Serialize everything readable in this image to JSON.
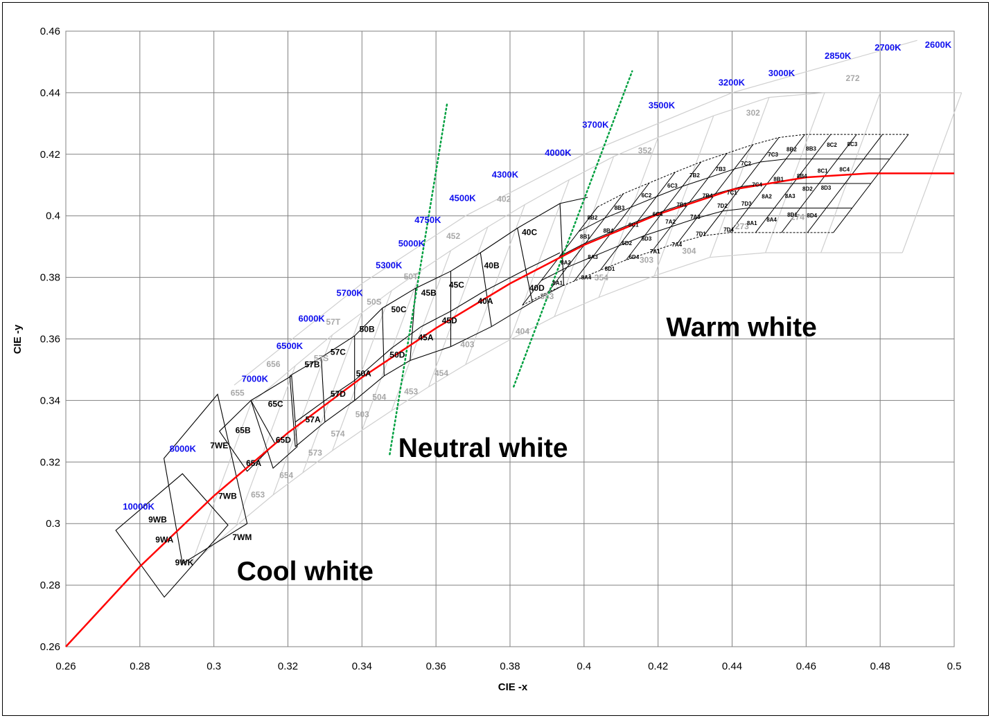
{
  "colors": {
    "locus": "#ff0000",
    "divider": "#00a040",
    "cct_label": "#1010ee",
    "bin_label_gray": "#a8a8a8"
  },
  "chart_data": {
    "type": "line",
    "title": "",
    "xlabel": "CIE -x",
    "ylabel": "CIE -y",
    "xlim": [
      0.26,
      0.5
    ],
    "ylim": [
      0.26,
      0.46
    ],
    "x_ticks": [
      "0.26",
      "0.28",
      "0.3",
      "0.32",
      "0.34",
      "0.36",
      "0.38",
      "0.4",
      "0.42",
      "0.44",
      "0.46",
      "0.48",
      "0.5"
    ],
    "y_ticks": [
      "0.26",
      "0.28",
      "0.3",
      "0.32",
      "0.34",
      "0.36",
      "0.38",
      "0.4",
      "0.42",
      "0.44",
      "0.46"
    ],
    "grid": true,
    "series": [
      {
        "name": "",
        "x": [
          0.26,
          0.28,
          0.3,
          0.32,
          0.34,
          0.36,
          0.38,
          0.4,
          0.42,
          0.44,
          0.46,
          0.477,
          0.5
        ],
        "y": [
          0.26,
          0.286,
          0.309,
          0.3295,
          0.3475,
          0.3635,
          0.378,
          0.3905,
          0.4005,
          0.4085,
          0.4125,
          0.4138,
          0.4138
        ]
      }
    ],
    "cct_labels": [
      {
        "text": "10000K",
        "x": 0.2754,
        "y": 0.3046
      },
      {
        "text": "8000K",
        "x": 0.288,
        "y": 0.3233
      },
      {
        "text": "7000K",
        "x": 0.3075,
        "y": 0.346
      },
      {
        "text": "6500K",
        "x": 0.3169,
        "y": 0.3567
      },
      {
        "text": "6000K",
        "x": 0.3228,
        "y": 0.3656
      },
      {
        "text": "5700K",
        "x": 0.3331,
        "y": 0.374
      },
      {
        "text": "5300K",
        "x": 0.3437,
        "y": 0.383
      },
      {
        "text": "5000K",
        "x": 0.3498,
        "y": 0.39
      },
      {
        "text": "4750K",
        "x": 0.3542,
        "y": 0.3977
      },
      {
        "text": "4500K",
        "x": 0.3636,
        "y": 0.4048
      },
      {
        "text": "4300K",
        "x": 0.3751,
        "y": 0.4124
      },
      {
        "text": "4000K",
        "x": 0.3894,
        "y": 0.4195
      },
      {
        "text": "3700K",
        "x": 0.3995,
        "y": 0.4286
      },
      {
        "text": "3500K",
        "x": 0.4174,
        "y": 0.4349
      },
      {
        "text": "3200K",
        "x": 0.4363,
        "y": 0.4423
      },
      {
        "text": "3000K",
        "x": 0.4498,
        "y": 0.4454
      },
      {
        "text": "2850K",
        "x": 0.465,
        "y": 0.451
      },
      {
        "text": "2700K",
        "x": 0.4785,
        "y": 0.4537
      },
      {
        "text": "2600K",
        "x": 0.4921,
        "y": 0.4546
      }
    ],
    "bins_black": [
      {
        "text": "9WB",
        "x": 0.2823,
        "y": 0.3004
      },
      {
        "text": "9WA",
        "x": 0.2842,
        "y": 0.2939
      },
      {
        "text": "9WK",
        "x": 0.2895,
        "y": 0.2864
      },
      {
        "text": "7WE",
        "x": 0.299,
        "y": 0.3244
      },
      {
        "text": "7WB",
        "x": 0.3012,
        "y": 0.308
      },
      {
        "text": "7WM",
        "x": 0.305,
        "y": 0.2946
      },
      {
        "text": "65B",
        "x": 0.3058,
        "y": 0.3294
      },
      {
        "text": "65A",
        "x": 0.3087,
        "y": 0.3187
      },
      {
        "text": "65C",
        "x": 0.3146,
        "y": 0.338
      },
      {
        "text": "65D",
        "x": 0.3167,
        "y": 0.3262
      },
      {
        "text": "57B",
        "x": 0.3245,
        "y": 0.3508
      },
      {
        "text": "57A",
        "x": 0.3247,
        "y": 0.3329
      },
      {
        "text": "57C",
        "x": 0.3315,
        "y": 0.3548
      },
      {
        "text": "57D",
        "x": 0.3315,
        "y": 0.3412
      },
      {
        "text": "50B",
        "x": 0.3393,
        "y": 0.3622
      },
      {
        "text": "50A",
        "x": 0.3384,
        "y": 0.3479
      },
      {
        "text": "50C",
        "x": 0.3479,
        "y": 0.3687
      },
      {
        "text": "50D",
        "x": 0.3475,
        "y": 0.3539
      },
      {
        "text": "45B",
        "x": 0.356,
        "y": 0.3741
      },
      {
        "text": "45A",
        "x": 0.3552,
        "y": 0.3595
      },
      {
        "text": "45C",
        "x": 0.3635,
        "y": 0.3767
      },
      {
        "text": "45D",
        "x": 0.3616,
        "y": 0.3651
      },
      {
        "text": "40B",
        "x": 0.373,
        "y": 0.383
      },
      {
        "text": "40A",
        "x": 0.3713,
        "y": 0.3714
      },
      {
        "text": "40C",
        "x": 0.3832,
        "y": 0.3938
      },
      {
        "text": "40D",
        "x": 0.3852,
        "y": 0.3756
      }
    ],
    "bins_black_small": [
      {
        "text": "8B2",
        "x": 0.4009,
        "y": 0.3988
      },
      {
        "text": "8B1",
        "x": 0.3989,
        "y": 0.3926
      },
      {
        "text": "8A2",
        "x": 0.3937,
        "y": 0.3842
      },
      {
        "text": "8A1",
        "x": 0.3915,
        "y": 0.3776
      },
      {
        "text": "8A3",
        "x": 0.401,
        "y": 0.386
      },
      {
        "text": "8A4",
        "x": 0.3992,
        "y": 0.3794
      },
      {
        "text": "8B3",
        "x": 0.4082,
        "y": 0.402
      },
      {
        "text": "8B4",
        "x": 0.4052,
        "y": 0.3945
      },
      {
        "text": "8D1",
        "x": 0.4056,
        "y": 0.3822
      },
      {
        "text": "6C1",
        "x": 0.412,
        "y": 0.3965
      },
      {
        "text": "6D2",
        "x": 0.4102,
        "y": 0.3905
      },
      {
        "text": "6D4",
        "x": 0.4121,
        "y": 0.386
      },
      {
        "text": "6C2",
        "x": 0.4155,
        "y": 0.406
      },
      {
        "text": "6C4",
        "x": 0.4185,
        "y": 0.3999
      },
      {
        "text": "6D3",
        "x": 0.4155,
        "y": 0.392
      },
      {
        "text": "7A1",
        "x": 0.4178,
        "y": 0.3878
      },
      {
        "text": "6C3",
        "x": 0.4225,
        "y": 0.4092
      },
      {
        "text": "7B1",
        "x": 0.425,
        "y": 0.403
      },
      {
        "text": "7A2",
        "x": 0.422,
        "y": 0.3975
      },
      {
        "text": "7A4",
        "x": 0.4237,
        "y": 0.39
      },
      {
        "text": "7B2",
        "x": 0.4285,
        "y": 0.4125
      },
      {
        "text": "7B4",
        "x": 0.432,
        "y": 0.4059
      },
      {
        "text": "7A3",
        "x": 0.4287,
        "y": 0.399
      },
      {
        "text": "7D1",
        "x": 0.4302,
        "y": 0.3935
      },
      {
        "text": "7B3",
        "x": 0.4355,
        "y": 0.4145
      },
      {
        "text": "7C1",
        "x": 0.4386,
        "y": 0.4069
      },
      {
        "text": "7D2",
        "x": 0.436,
        "y": 0.4026
      },
      {
        "text": "7D4",
        "x": 0.4377,
        "y": 0.3949
      },
      {
        "text": "7C2",
        "x": 0.4424,
        "y": 0.4163
      },
      {
        "text": "7C4",
        "x": 0.4454,
        "y": 0.4095
      },
      {
        "text": "7D3",
        "x": 0.4425,
        "y": 0.4033
      },
      {
        "text": "8A1",
        "x": 0.444,
        "y": 0.397
      },
      {
        "text": "7C3",
        "x": 0.4497,
        "y": 0.4193
      },
      {
        "text": "8B1",
        "x": 0.4512,
        "y": 0.4113
      },
      {
        "text": "8A2",
        "x": 0.448,
        "y": 0.4057
      },
      {
        "text": "8A4",
        "x": 0.4493,
        "y": 0.3981
      },
      {
        "text": "8B2",
        "x": 0.4547,
        "y": 0.421
      },
      {
        "text": "8B4",
        "x": 0.4575,
        "y": 0.4123
      },
      {
        "text": "8A3",
        "x": 0.4543,
        "y": 0.4058
      },
      {
        "text": "8D1",
        "x": 0.4549,
        "y": 0.3997
      },
      {
        "text": "8B3",
        "x": 0.46,
        "y": 0.4212
      },
      {
        "text": "8C1",
        "x": 0.4631,
        "y": 0.414
      },
      {
        "text": "8D2",
        "x": 0.459,
        "y": 0.4082
      },
      {
        "text": "8D4",
        "x": 0.4602,
        "y": 0.3995
      },
      {
        "text": "8C2",
        "x": 0.4656,
        "y": 0.4224
      },
      {
        "text": "8C4",
        "x": 0.469,
        "y": 0.4144
      },
      {
        "text": "8D3",
        "x": 0.464,
        "y": 0.4085
      },
      {
        "text": "8C3",
        "x": 0.4711,
        "y": 0.4226
      }
    ],
    "bins_gray": [
      {
        "text": "655",
        "x": 0.3045,
        "y": 0.3416
      },
      {
        "text": "656",
        "x": 0.3142,
        "y": 0.3509
      },
      {
        "text": "654",
        "x": 0.3177,
        "y": 0.3148
      },
      {
        "text": "653",
        "x": 0.31,
        "y": 0.3085
      },
      {
        "text": "57S",
        "x": 0.327,
        "y": 0.3528
      },
      {
        "text": "57T",
        "x": 0.3303,
        "y": 0.3646
      },
      {
        "text": "573",
        "x": 0.3255,
        "y": 0.3221
      },
      {
        "text": "574",
        "x": 0.3316,
        "y": 0.3283
      },
      {
        "text": "50S",
        "x": 0.3413,
        "y": 0.3711
      },
      {
        "text": "50T",
        "x": 0.3513,
        "y": 0.3794
      },
      {
        "text": "503",
        "x": 0.3382,
        "y": 0.3346
      },
      {
        "text": "504",
        "x": 0.3428,
        "y": 0.3402
      },
      {
        "text": "452",
        "x": 0.3628,
        "y": 0.3925
      },
      {
        "text": "453",
        "x": 0.3514,
        "y": 0.342
      },
      {
        "text": "454",
        "x": 0.3596,
        "y": 0.348
      },
      {
        "text": "403",
        "x": 0.3666,
        "y": 0.3573
      },
      {
        "text": "404",
        "x": 0.3815,
        "y": 0.3616
      },
      {
        "text": "402",
        "x": 0.3765,
        "y": 0.4046
      },
      {
        "text": "353",
        "x": 0.3881,
        "y": 0.3729
      },
      {
        "text": "354",
        "x": 0.4028,
        "y": 0.379
      },
      {
        "text": "352",
        "x": 0.4146,
        "y": 0.4203
      },
      {
        "text": "303",
        "x": 0.415,
        "y": 0.3847
      },
      {
        "text": "304",
        "x": 0.4265,
        "y": 0.3877
      },
      {
        "text": "302",
        "x": 0.4438,
        "y": 0.4325
      },
      {
        "text": "273",
        "x": 0.4408,
        "y": 0.3957
      },
      {
        "text": "274",
        "x": 0.4558,
        "y": 0.3987
      },
      {
        "text": "272",
        "x": 0.4707,
        "y": 0.4438
      }
    ],
    "annotations": [
      {
        "text": "Cool white",
        "x": 0.3062,
        "y": 0.2816
      },
      {
        "text": "Neutral white",
        "x": 0.3498,
        "y": 0.3216
      },
      {
        "text": "Warm white",
        "x": 0.4222,
        "y": 0.3609
      }
    ]
  }
}
